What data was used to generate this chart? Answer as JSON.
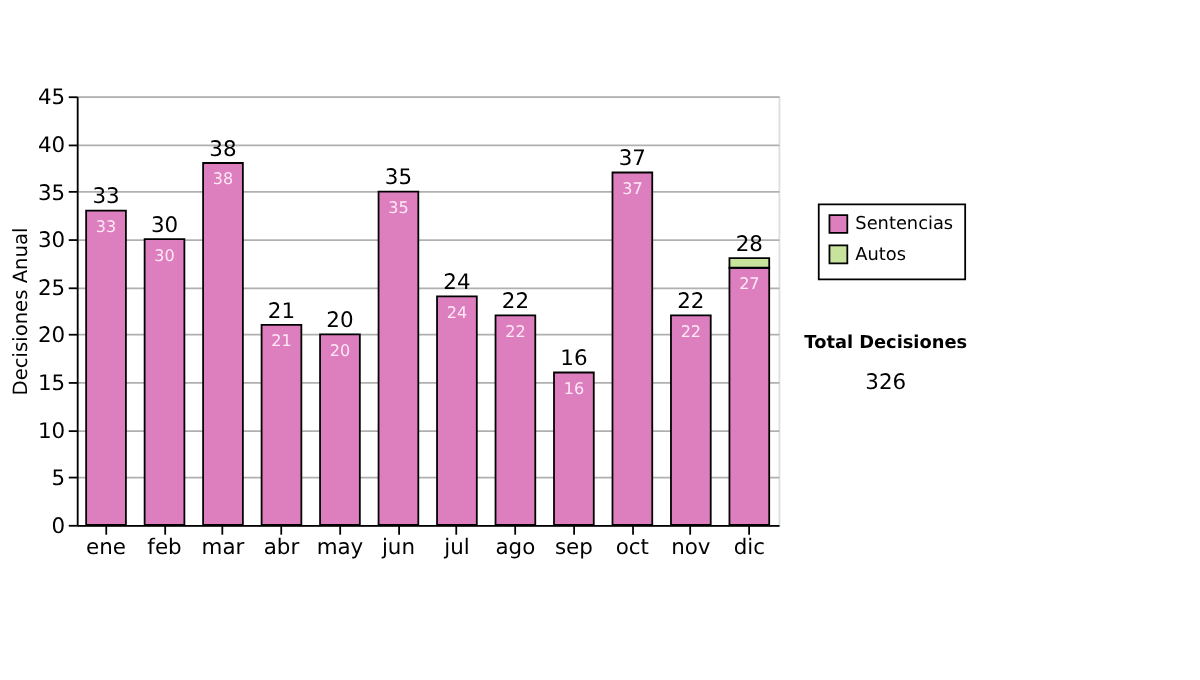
{
  "chart_data": {
    "type": "bar",
    "stacked": true,
    "ylabel": "Decisiones Anual",
    "categories": [
      "ene",
      "feb",
      "mar",
      "abr",
      "may",
      "jun",
      "jul",
      "ago",
      "sep",
      "oct",
      "nov",
      "dic"
    ],
    "series": [
      {
        "name": "Sentencias",
        "color": "#dd7fbe",
        "values": [
          33,
          30,
          38,
          21,
          20,
          35,
          24,
          22,
          16,
          37,
          22,
          27
        ],
        "value_labels": [
          "33",
          "30",
          "38",
          "21",
          "20",
          "35",
          "24",
          "22",
          "16",
          "37",
          "22",
          "27"
        ]
      },
      {
        "name": "Autos",
        "color": "#c8e39b",
        "values": [
          null,
          null,
          null,
          null,
          null,
          null,
          null,
          null,
          null,
          null,
          null,
          1
        ]
      }
    ],
    "totals": [
      "33",
      "30",
      "38",
      "21",
      "20",
      "35",
      "24",
      "22",
      "16",
      "37",
      "22",
      "28"
    ],
    "ylim": [
      0,
      45
    ],
    "yticks": [
      0,
      5,
      10,
      15,
      20,
      25,
      30,
      35,
      40,
      45
    ],
    "grid": "y",
    "legend": "right",
    "annotations": [
      "Total Decisiones",
      "326"
    ]
  }
}
